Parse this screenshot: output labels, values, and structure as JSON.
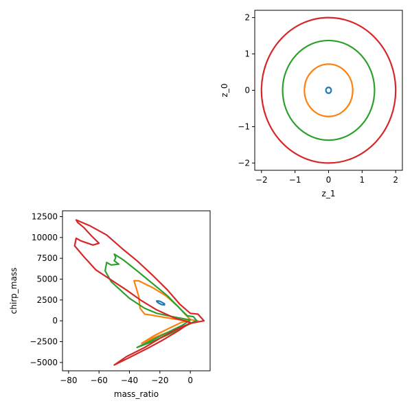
{
  "chart_data": [
    {
      "type": "scatter",
      "title": "",
      "xlabel": "z_1",
      "ylabel": "z_0",
      "xlim": [
        -2.2,
        2.2
      ],
      "ylim": [
        -2.2,
        2.2
      ],
      "xticks": [
        -2,
        -1,
        0,
        1,
        2
      ],
      "yticks": [
        -2,
        -1,
        0,
        1,
        2
      ],
      "xtick_labels": [
        "−2",
        "−1",
        "0",
        "1",
        "2"
      ],
      "ytick_labels": [
        "−2",
        "−1",
        "0",
        "1",
        "2"
      ],
      "grid": false,
      "legend": "none",
      "series": [
        {
          "color": "#1f77b4",
          "shape": "ellipse",
          "center": [
            0,
            0
          ],
          "rx": 0.08,
          "ry": 0.08
        },
        {
          "color": "#ff7f0e",
          "shape": "ellipse",
          "center": [
            0,
            0
          ],
          "rx": 0.72,
          "ry": 0.72
        },
        {
          "color": "#2ca02c",
          "shape": "ellipse",
          "center": [
            0,
            0
          ],
          "rx": 1.37,
          "ry": 1.37
        },
        {
          "color": "#d62728",
          "shape": "ellipse",
          "center": [
            0,
            0
          ],
          "rx": 2.0,
          "ry": 2.0
        }
      ]
    },
    {
      "type": "scatter",
      "title": "",
      "xlabel": "mass_ratio",
      "ylabel": "chirp_mass",
      "xlim": [
        -84,
        13
      ],
      "ylim": [
        -6000,
        13200
      ],
      "xticks": [
        -80,
        -60,
        -40,
        -20,
        0
      ],
      "yticks": [
        -5000,
        -2500,
        0,
        2500,
        5000,
        7500,
        10000,
        12500
      ],
      "xtick_labels": [
        "−80",
        "−60",
        "−40",
        "−20",
        "0"
      ],
      "ytick_labels": [
        "−5000",
        "−2500",
        "0",
        "2500",
        "5000",
        "7500",
        "10000",
        "12500"
      ],
      "grid": false,
      "legend": "none",
      "series": [
        {
          "color": "#1f77b4",
          "shape": "closed",
          "points": [
            [
              -22,
              2400
            ],
            [
              -20,
              2350
            ],
            [
              -17,
              2050
            ],
            [
              -17,
              1900
            ],
            [
              -19,
              1950
            ],
            [
              -21,
              2150
            ],
            [
              -22,
              2300
            ],
            [
              -22,
              2400
            ]
          ]
        },
        {
          "color": "#ff7f0e",
          "shape": "closed",
          "points": [
            [
              -37,
              4800
            ],
            [
              -34,
              4800
            ],
            [
              -25,
              4000
            ],
            [
              -16,
              3000
            ],
            [
              -8,
              1700
            ],
            [
              -3,
              700
            ],
            [
              0,
              150
            ],
            [
              5,
              0
            ],
            [
              -5,
              -700
            ],
            [
              -15,
              -1400
            ],
            [
              -25,
              -2100
            ],
            [
              -32,
              -2700
            ],
            [
              -24,
              -1800
            ],
            [
              -14,
              -900
            ],
            [
              -6,
              -200
            ],
            [
              -2,
              0
            ],
            [
              -10,
              200
            ],
            [
              -20,
              500
            ],
            [
              -26,
              700
            ],
            [
              -30,
              800
            ],
            [
              -33,
              1500
            ],
            [
              -34,
              3000
            ],
            [
              -36,
              4200
            ],
            [
              -37,
              4800
            ]
          ]
        },
        {
          "color": "#2ca02c",
          "shape": "closed",
          "points": [
            [
              -50,
              8000
            ],
            [
              -44,
              7300
            ],
            [
              -35,
              6000
            ],
            [
              -25,
              4500
            ],
            [
              -15,
              3000
            ],
            [
              -7,
              1500
            ],
            [
              -2,
              600
            ],
            [
              2,
              500
            ],
            [
              4,
              50
            ],
            [
              -5,
              -800
            ],
            [
              -15,
              -1700
            ],
            [
              -25,
              -2500
            ],
            [
              -35,
              -3200
            ],
            [
              -25,
              -2300
            ],
            [
              -15,
              -1400
            ],
            [
              -5,
              -500
            ],
            [
              0,
              100
            ],
            [
              -12,
              500
            ],
            [
              -22,
              900
            ],
            [
              -30,
              1500
            ],
            [
              -40,
              2700
            ],
            [
              -52,
              4700
            ],
            [
              -56,
              6000
            ],
            [
              -55,
              7000
            ],
            [
              -52,
              6700
            ],
            [
              -47,
              6800
            ],
            [
              -50,
              7200
            ],
            [
              -49,
              7600
            ],
            [
              -50,
              8000
            ]
          ]
        },
        {
          "color": "#d62728",
          "shape": "closed",
          "points": [
            [
              -75,
              12100
            ],
            [
              -66,
              11400
            ],
            [
              -55,
              10300
            ],
            [
              -45,
              8700
            ],
            [
              -35,
              7200
            ],
            [
              -25,
              5500
            ],
            [
              -15,
              3700
            ],
            [
              -7,
              2000
            ],
            [
              0,
              900
            ],
            [
              5,
              800
            ],
            [
              9,
              0
            ],
            [
              0,
              -300
            ],
            [
              -10,
              -1100
            ],
            [
              -20,
              -2100
            ],
            [
              -30,
              -3200
            ],
            [
              -42,
              -4300
            ],
            [
              -50,
              -5300
            ],
            [
              -40,
              -4400
            ],
            [
              -28,
              -3300
            ],
            [
              -18,
              -2300
            ],
            [
              -8,
              -1200
            ],
            [
              0,
              -200
            ],
            [
              -10,
              300
            ],
            [
              -22,
              1300
            ],
            [
              -32,
              2400
            ],
            [
              -42,
              3700
            ],
            [
              -52,
              4900
            ],
            [
              -62,
              6100
            ],
            [
              -70,
              7700
            ],
            [
              -76,
              9000
            ],
            [
              -75,
              9900
            ],
            [
              -72,
              9600
            ],
            [
              -64,
              9100
            ],
            [
              -60,
              9300
            ],
            [
              -65,
              10200
            ],
            [
              -70,
              11200
            ],
            [
              -74,
              11800
            ],
            [
              -75,
              12100
            ]
          ]
        }
      ]
    }
  ]
}
